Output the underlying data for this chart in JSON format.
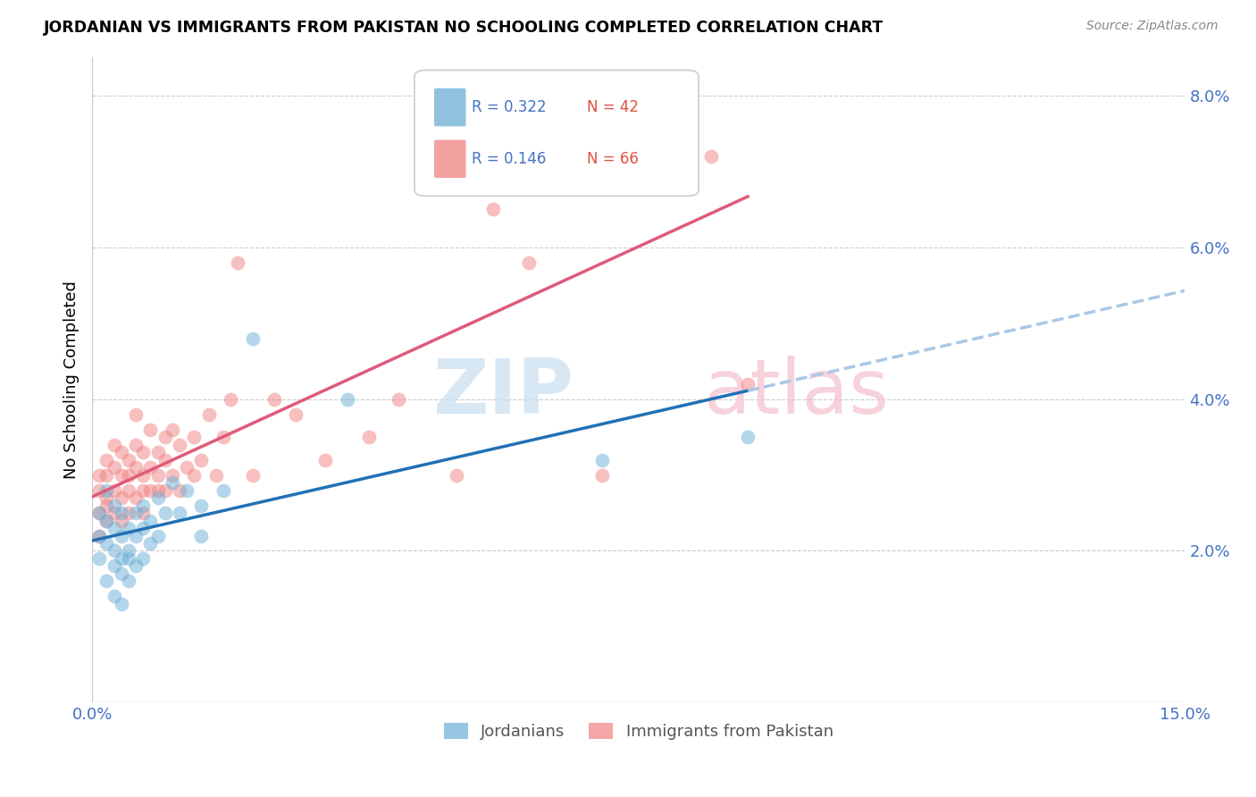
{
  "title": "JORDANIAN VS IMMIGRANTS FROM PAKISTAN NO SCHOOLING COMPLETED CORRELATION CHART",
  "source": "Source: ZipAtlas.com",
  "ylabel": "No Schooling Completed",
  "xlim": [
    0.0,
    0.15
  ],
  "ylim": [
    0.0,
    0.085
  ],
  "yticks": [
    0.0,
    0.02,
    0.04,
    0.06,
    0.08
  ],
  "ytick_labels": [
    "",
    "2.0%",
    "4.0%",
    "6.0%",
    "8.0%"
  ],
  "xtick_positions": [
    0.0,
    0.03,
    0.06,
    0.09,
    0.12,
    0.15
  ],
  "xtick_labels": [
    "0.0%",
    "",
    "",
    "",
    "",
    "15.0%"
  ],
  "legend1_label": "Jordanians",
  "legend2_label": "Immigrants from Pakistan",
  "r1": "0.322",
  "n1": "42",
  "r2": "0.146",
  "n2": "66",
  "color1": "#6baed6",
  "color2": "#f08080",
  "trendline1_color": "#2171b5",
  "trendline2_color": "#e05a7a",
  "trendline1_dashed_color": "#a8c8e8",
  "jordanians_x": [
    0.001,
    0.001,
    0.001,
    0.002,
    0.002,
    0.002,
    0.002,
    0.003,
    0.003,
    0.003,
    0.003,
    0.003,
    0.004,
    0.004,
    0.004,
    0.004,
    0.004,
    0.005,
    0.005,
    0.005,
    0.005,
    0.006,
    0.006,
    0.006,
    0.007,
    0.007,
    0.007,
    0.008,
    0.008,
    0.009,
    0.009,
    0.01,
    0.011,
    0.012,
    0.013,
    0.015,
    0.015,
    0.018,
    0.022,
    0.035,
    0.07,
    0.09
  ],
  "jordanians_y": [
    0.019,
    0.022,
    0.025,
    0.016,
    0.021,
    0.024,
    0.028,
    0.018,
    0.02,
    0.023,
    0.026,
    0.014,
    0.019,
    0.022,
    0.025,
    0.017,
    0.013,
    0.02,
    0.023,
    0.016,
    0.019,
    0.022,
    0.025,
    0.018,
    0.026,
    0.023,
    0.019,
    0.024,
    0.021,
    0.027,
    0.022,
    0.025,
    0.029,
    0.025,
    0.028,
    0.022,
    0.026,
    0.028,
    0.048,
    0.04,
    0.032,
    0.035
  ],
  "pakistan_x": [
    0.001,
    0.001,
    0.001,
    0.001,
    0.002,
    0.002,
    0.002,
    0.002,
    0.002,
    0.003,
    0.003,
    0.003,
    0.003,
    0.004,
    0.004,
    0.004,
    0.004,
    0.005,
    0.005,
    0.005,
    0.005,
    0.006,
    0.006,
    0.006,
    0.006,
    0.007,
    0.007,
    0.007,
    0.007,
    0.008,
    0.008,
    0.008,
    0.009,
    0.009,
    0.009,
    0.01,
    0.01,
    0.01,
    0.011,
    0.011,
    0.012,
    0.012,
    0.013,
    0.014,
    0.014,
    0.015,
    0.016,
    0.017,
    0.018,
    0.019,
    0.02,
    0.022,
    0.025,
    0.028,
    0.032,
    0.038,
    0.042,
    0.05,
    0.055,
    0.06,
    0.065,
    0.07,
    0.075,
    0.08,
    0.085,
    0.09
  ],
  "pakistan_y": [
    0.028,
    0.025,
    0.022,
    0.03,
    0.027,
    0.024,
    0.03,
    0.032,
    0.026,
    0.025,
    0.028,
    0.031,
    0.034,
    0.027,
    0.03,
    0.024,
    0.033,
    0.028,
    0.032,
    0.025,
    0.03,
    0.031,
    0.034,
    0.027,
    0.038,
    0.03,
    0.028,
    0.033,
    0.025,
    0.031,
    0.036,
    0.028,
    0.033,
    0.028,
    0.03,
    0.035,
    0.032,
    0.028,
    0.036,
    0.03,
    0.034,
    0.028,
    0.031,
    0.03,
    0.035,
    0.032,
    0.038,
    0.03,
    0.035,
    0.04,
    0.058,
    0.03,
    0.04,
    0.038,
    0.032,
    0.035,
    0.04,
    0.03,
    0.065,
    0.058,
    0.07,
    0.03,
    0.08,
    0.082,
    0.072,
    0.042
  ]
}
